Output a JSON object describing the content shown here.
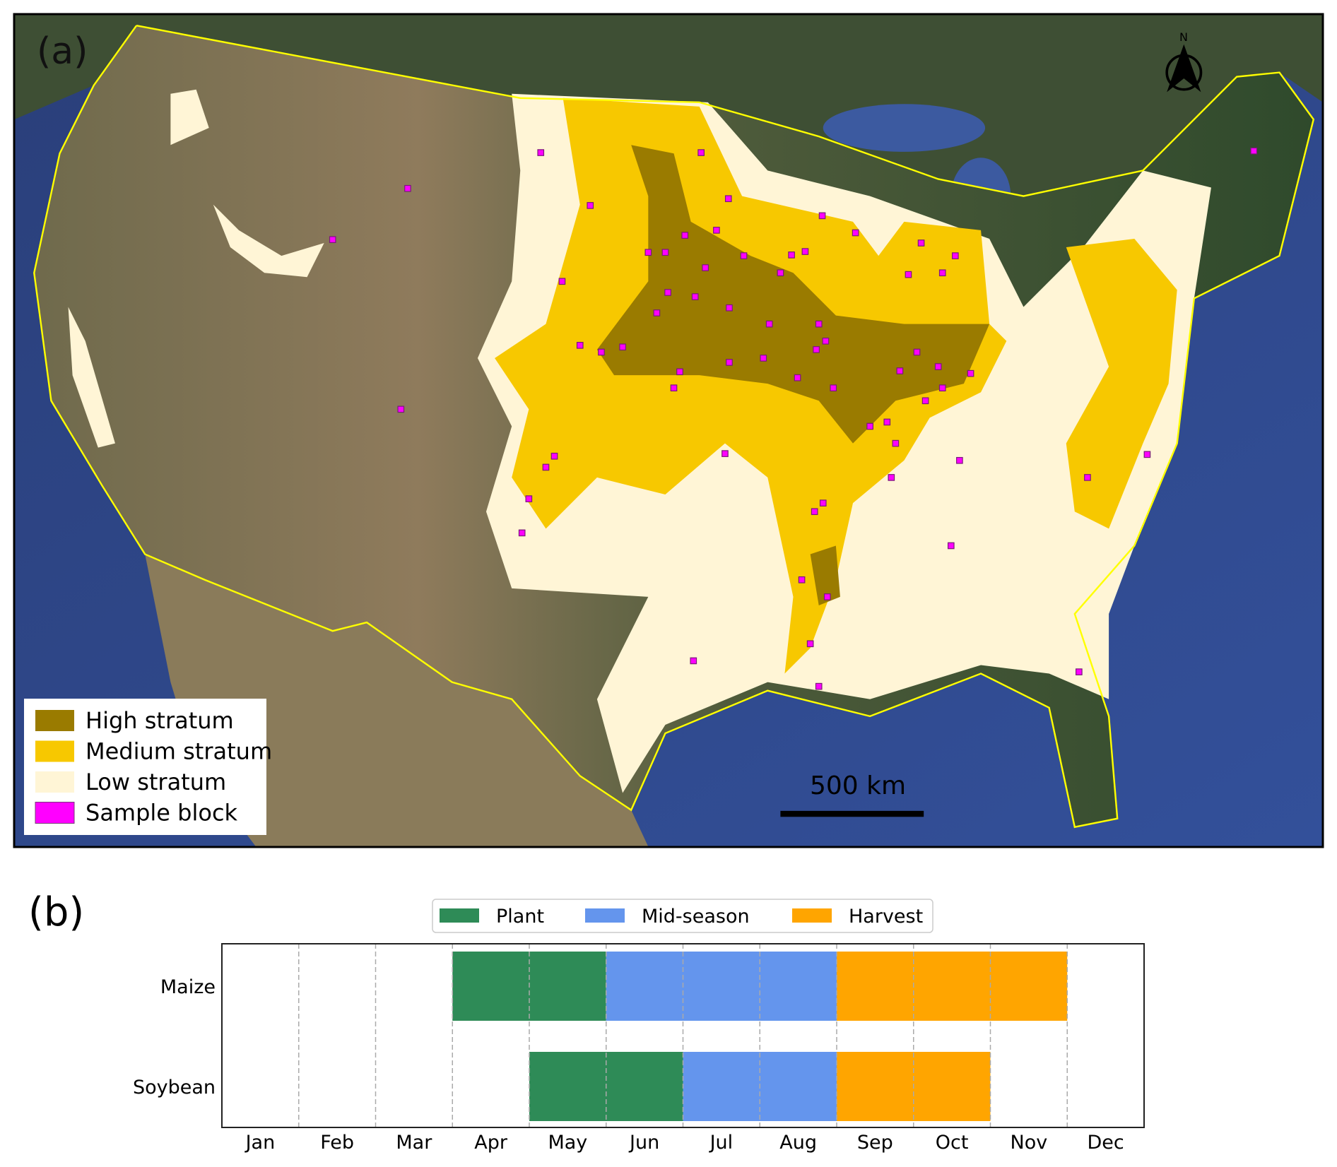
{
  "panel_a": {
    "label": "(a)",
    "north_label": "N",
    "scale_bar_label": "500 km",
    "legend": [
      {
        "label": "High stratum",
        "color": "#9a7b00"
      },
      {
        "label": "Medium stratum",
        "color": "#f7c800"
      },
      {
        "label": "Low stratum",
        "color": "#fff5d6"
      },
      {
        "label": "Sample block",
        "color": "#ff00ff"
      }
    ],
    "border_color": "#ffff00"
  },
  "panel_b": {
    "label": "(b)"
  },
  "chart_data": {
    "type": "bar",
    "orientation": "horizontal-stacked-timeline",
    "categories": [
      "Maize",
      "Soybean"
    ],
    "x_ticks": [
      "Jan",
      "Feb",
      "Mar",
      "Apr",
      "May",
      "Jun",
      "Jul",
      "Aug",
      "Sep",
      "Oct",
      "Nov",
      "Dec"
    ],
    "series": [
      {
        "name": "Plant",
        "color": "#2e8b57",
        "ranges": {
          "Maize": [
            "Apr",
            "May"
          ],
          "Soybean": [
            "May",
            "Jun"
          ]
        }
      },
      {
        "name": "Mid-season",
        "color": "#6495ed",
        "ranges": {
          "Maize": [
            "Jun",
            "Aug"
          ],
          "Soybean": [
            "Jul",
            "Aug"
          ]
        }
      },
      {
        "name": "Harvest",
        "color": "#ffa500",
        "ranges": {
          "Maize": [
            "Sep",
            "Nov"
          ],
          "Soybean": [
            "Sep",
            "Oct"
          ]
        }
      }
    ],
    "grid": "vertical dashed month boundaries",
    "legend_position": "top-center"
  }
}
